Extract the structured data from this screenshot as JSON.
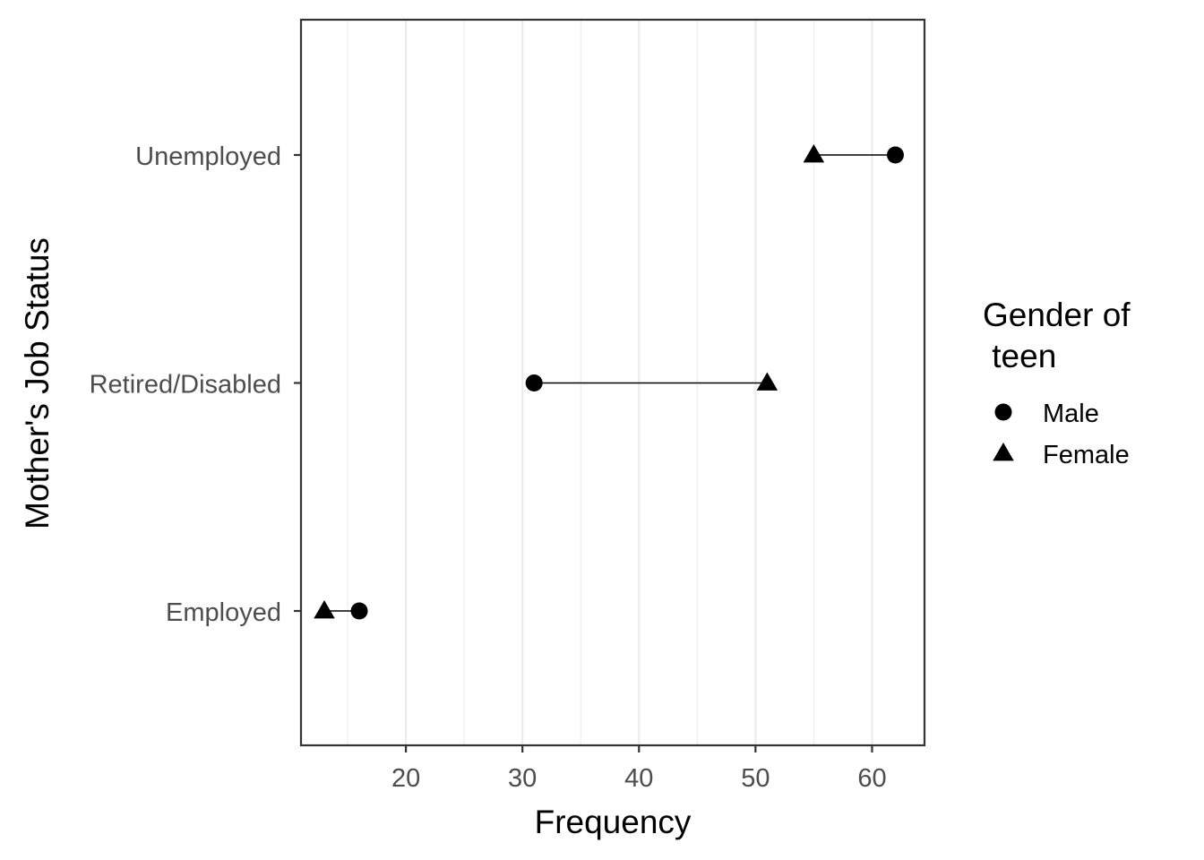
{
  "chart_data": {
    "type": "scatter",
    "subtype": "dumbbell",
    "title": "",
    "xlabel": "Frequency",
    "ylabel": "Mother's Job Status",
    "xlim": [
      11,
      64.5
    ],
    "x_ticks": [
      20,
      30,
      40,
      50,
      60
    ],
    "x_tick_labels": [
      "20",
      "30",
      "40",
      "50",
      "60"
    ],
    "categories": [
      "Employed",
      "Retired/Disabled",
      "Unemployed"
    ],
    "series": [
      {
        "name": "Male",
        "marker": "circle",
        "values": [
          16,
          31,
          62
        ]
      },
      {
        "name": "Female",
        "marker": "triangle",
        "values": [
          13,
          51,
          55
        ]
      }
    ],
    "legend": {
      "title_line1": "Gender of",
      "title_line2": " teen",
      "position": "right"
    },
    "grid": true,
    "colors": {
      "points": "#000000",
      "grid": "#ebebeb",
      "panel_border": "#333333",
      "tick_text": "#4d4d4d"
    }
  }
}
